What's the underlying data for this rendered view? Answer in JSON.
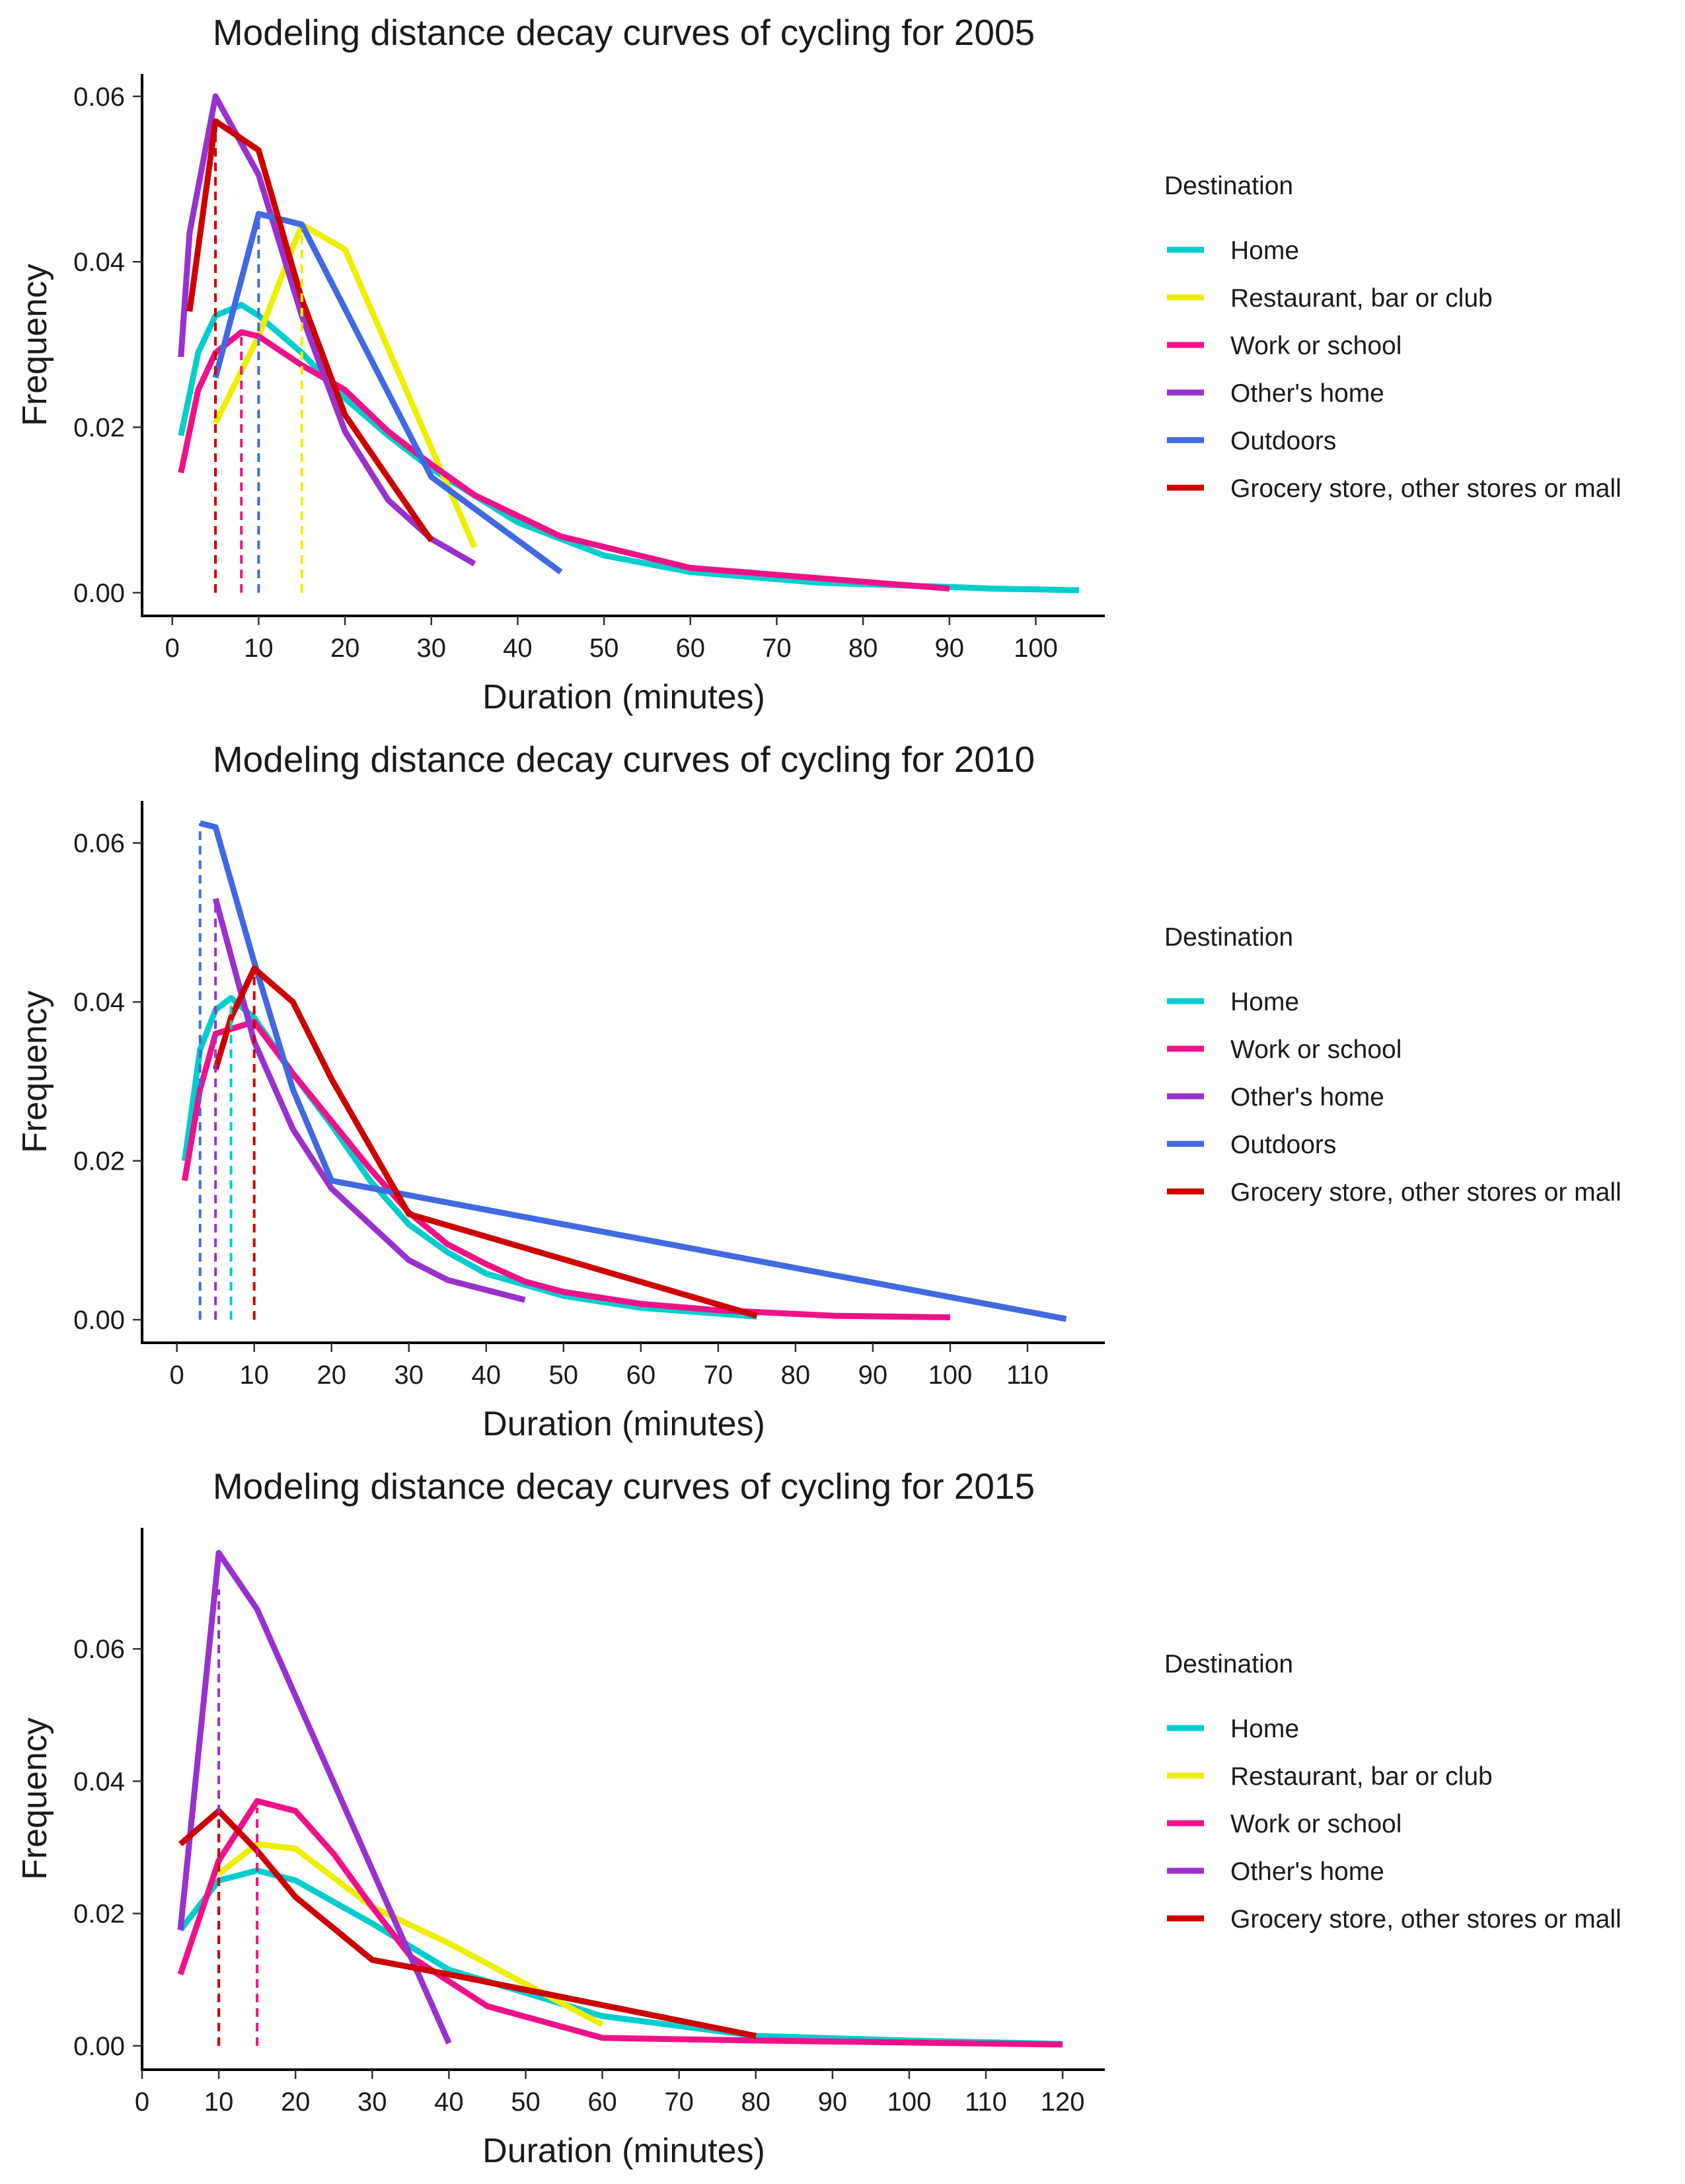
{
  "chart_data": [
    {
      "type": "line",
      "title": "Modeling distance decay curves of cycling for 2005",
      "xlabel": "Duration (minutes)",
      "ylabel": "Frequency",
      "xlim": [
        -3.5,
        108
      ],
      "ylim": [
        -0.0028,
        0.0627
      ],
      "xticks": [
        0,
        10,
        20,
        30,
        40,
        50,
        60,
        70,
        80,
        90,
        100
      ],
      "yticks": [
        0.0,
        0.02,
        0.04,
        0.06
      ],
      "ytick_labels": [
        "0.00",
        "0.02",
        "0.04",
        "0.06"
      ],
      "grid": false,
      "legend_title": "Destination",
      "legend_position": "right",
      "series": [
        {
          "name": "Home",
          "color": "#00CDCD",
          "x": [
            1,
            2,
            3,
            5,
            8,
            10,
            15,
            20,
            25,
            30,
            40,
            50,
            60,
            75,
            90,
            95,
            100,
            105
          ],
          "y": [
            0.019,
            0.024,
            0.029,
            0.0335,
            0.0348,
            0.0335,
            0.029,
            0.0235,
            0.019,
            0.015,
            0.0085,
            0.0045,
            0.0025,
            0.0012,
            0.0007,
            0.0005,
            0.0004,
            0.0003
          ]
        },
        {
          "name": "Restaurant, bar or club",
          "color": "#EEEE00",
          "x": [
            5,
            10,
            15,
            20,
            35
          ],
          "y": [
            0.0205,
            0.031,
            0.0445,
            0.0415,
            0.0055
          ]
        },
        {
          "name": "Work or school",
          "color": "#EE1289",
          "x": [
            1,
            3,
            5,
            8,
            10,
            15,
            20,
            25,
            30,
            35,
            45,
            60,
            90
          ],
          "y": [
            0.0145,
            0.0245,
            0.029,
            0.0315,
            0.031,
            0.0275,
            0.0245,
            0.0195,
            0.0155,
            0.0118,
            0.0068,
            0.003,
            0.0005
          ]
        },
        {
          "name": "Other's home",
          "color": "#9932CC",
          "x": [
            1,
            2,
            5,
            10,
            15,
            20,
            25,
            30,
            35
          ],
          "y": [
            0.0285,
            0.0435,
            0.06,
            0.0505,
            0.0335,
            0.0195,
            0.0112,
            0.0065,
            0.0035
          ]
        },
        {
          "name": "Outdoors",
          "color": "#4169E1",
          "x": [
            5,
            10,
            15,
            30,
            45
          ],
          "y": [
            0.026,
            0.0458,
            0.0445,
            0.014,
            0.0025
          ]
        },
        {
          "name": "Grocery store, other stores or mall",
          "color": "#CD0000",
          "x": [
            2,
            5,
            10,
            15,
            20,
            30
          ],
          "y": [
            0.034,
            0.057,
            0.0535,
            0.0355,
            0.0215,
            0.0063
          ]
        }
      ],
      "reference_lines": [
        {
          "x": 5,
          "top": 0.057,
          "color": "#CD0000"
        },
        {
          "x": 8,
          "top": 0.0315,
          "color": "#EE1289"
        },
        {
          "x": 10,
          "top": 0.0455,
          "color": "#4169E1"
        },
        {
          "x": 15,
          "top": 0.044,
          "color": "#EEEE00"
        }
      ]
    },
    {
      "type": "line",
      "title": "Modeling distance decay curves of cycling for 2010",
      "xlabel": "Duration (minutes)",
      "ylabel": "Frequency",
      "xlim": [
        -4.5,
        120
      ],
      "ylim": [
        -0.0029,
        0.0653
      ],
      "xticks": [
        0,
        10,
        20,
        30,
        40,
        50,
        60,
        70,
        80,
        90,
        100,
        110
      ],
      "yticks": [
        0.0,
        0.02,
        0.04,
        0.06
      ],
      "ytick_labels": [
        "0.00",
        "0.02",
        "0.04",
        "0.06"
      ],
      "grid": false,
      "legend_title": "Destination",
      "legend_position": "right",
      "series": [
        {
          "name": "Home",
          "color": "#00CDCD",
          "x": [
            1,
            2,
            3,
            5,
            7,
            10,
            15,
            20,
            25,
            30,
            35,
            40,
            50,
            60,
            75
          ],
          "y": [
            0.02,
            0.027,
            0.034,
            0.039,
            0.0405,
            0.038,
            0.031,
            0.0245,
            0.0175,
            0.012,
            0.0085,
            0.0058,
            0.003,
            0.0015,
            0.0004
          ]
        },
        {
          "name": "Work or school",
          "color": "#EE1289",
          "x": [
            1,
            3,
            5,
            10,
            15,
            20,
            25,
            30,
            35,
            40,
            45,
            50,
            60,
            70,
            85,
            100
          ],
          "y": [
            0.0175,
            0.029,
            0.036,
            0.0375,
            0.031,
            0.025,
            0.019,
            0.0135,
            0.0095,
            0.007,
            0.0048,
            0.0035,
            0.002,
            0.0012,
            0.0005,
            0.0003
          ]
        },
        {
          "name": "Other's home",
          "color": "#9932CC",
          "x": [
            5,
            10,
            15,
            20,
            30,
            35,
            45
          ],
          "y": [
            0.053,
            0.035,
            0.024,
            0.0165,
            0.0075,
            0.005,
            0.0025
          ]
        },
        {
          "name": "Outdoors",
          "color": "#4169E1",
          "x": [
            3,
            5,
            10,
            15,
            20,
            115
          ],
          "y": [
            0.0625,
            0.062,
            0.045,
            0.029,
            0.0175,
            0.0001
          ]
        },
        {
          "name": "Grocery store, other stores or mall",
          "color": "#CD0000",
          "x": [
            5,
            7,
            10,
            15,
            20,
            30,
            75
          ],
          "y": [
            0.0315,
            0.038,
            0.0442,
            0.04,
            0.0303,
            0.0133,
            0.0005
          ]
        }
      ],
      "reference_lines": [
        {
          "x": 3,
          "top": 0.0625,
          "color": "#4169E1"
        },
        {
          "x": 5,
          "top": 0.0525,
          "color": "#9932CC"
        },
        {
          "x": 7,
          "top": 0.0395,
          "color": "#00CDCD"
        },
        {
          "x": 10,
          "top": 0.0435,
          "color": "#CD0000"
        }
      ]
    },
    {
      "type": "line",
      "title": "Modeling distance decay curves of cycling for 2015",
      "xlabel": "Duration (minutes)",
      "ylabel": "Frequency",
      "xlim": [
        0,
        125.5
      ],
      "ylim": [
        -0.0036,
        0.0783
      ],
      "xticks": [
        0,
        10,
        20,
        30,
        40,
        50,
        60,
        70,
        80,
        90,
        100,
        110,
        120
      ],
      "yticks": [
        0.0,
        0.02,
        0.04,
        0.06
      ],
      "ytick_labels": [
        "0.00",
        "0.02",
        "0.04",
        "0.06"
      ],
      "grid": false,
      "legend_title": "Destination",
      "legend_position": "right",
      "series": [
        {
          "name": "Home",
          "color": "#00CDCD",
          "x": [
            5,
            10,
            15,
            20,
            30,
            40,
            60,
            80,
            100,
            120
          ],
          "y": [
            0.0175,
            0.025,
            0.0265,
            0.025,
            0.0185,
            0.0115,
            0.0045,
            0.0015,
            0.0008,
            0.0003
          ]
        },
        {
          "name": "Restaurant, bar or club",
          "color": "#EEEE00",
          "x": [
            10,
            15,
            20,
            30,
            40,
            60
          ],
          "y": [
            0.026,
            0.0305,
            0.0298,
            0.021,
            0.0155,
            0.0032
          ]
        },
        {
          "name": "Work or school",
          "color": "#EE1289",
          "x": [
            5,
            10,
            15,
            20,
            25,
            30,
            35,
            45,
            60,
            80,
            120
          ],
          "y": [
            0.0108,
            0.028,
            0.037,
            0.0355,
            0.029,
            0.021,
            0.0135,
            0.006,
            0.0012,
            0.0008,
            0.0002
          ]
        },
        {
          "name": "Other's home",
          "color": "#9932CC",
          "x": [
            5,
            10,
            15,
            40
          ],
          "y": [
            0.0175,
            0.0745,
            0.066,
            0.0004
          ]
        },
        {
          "name": "Grocery store, other stores or mall",
          "color": "#CD0000",
          "x": [
            5,
            10,
            15,
            20,
            30,
            40,
            80
          ],
          "y": [
            0.0305,
            0.0355,
            0.0295,
            0.0225,
            0.013,
            0.0108,
            0.0015
          ]
        }
      ],
      "reference_lines": [
        {
          "x": 10,
          "top": 0.069,
          "color": "#9932CC"
        },
        {
          "x": 10,
          "top": 0.035,
          "color": "#CD0000"
        },
        {
          "x": 15,
          "top": 0.036,
          "color": "#EE1289"
        }
      ]
    }
  ]
}
